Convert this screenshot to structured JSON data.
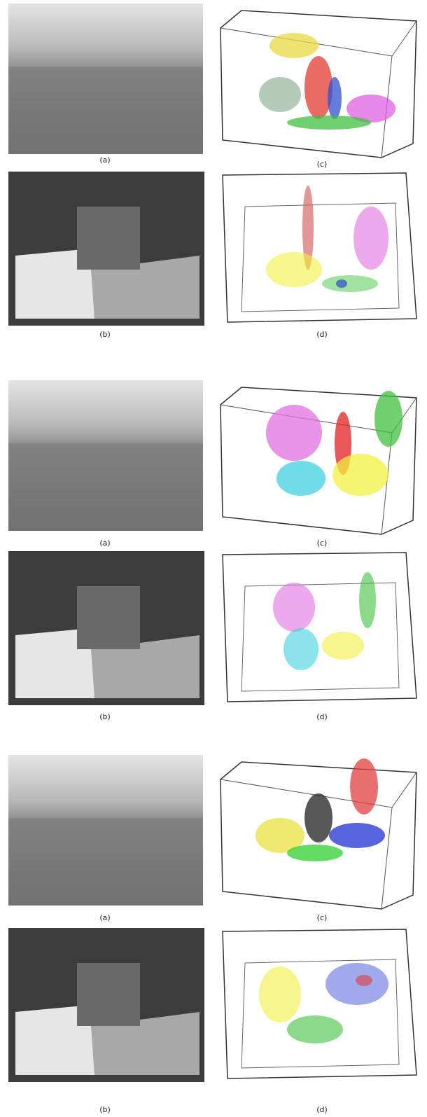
{
  "figures": [
    {
      "a": "(a)",
      "b": "(b)",
      "c": "(c)",
      "d": "(d)"
    },
    {
      "a": "(a)",
      "b": "(b)",
      "c": "(c)",
      "d": "(d)"
    },
    {
      "a": "(a)",
      "b": "(b)",
      "c": "(c)",
      "d": "(d)"
    }
  ]
}
